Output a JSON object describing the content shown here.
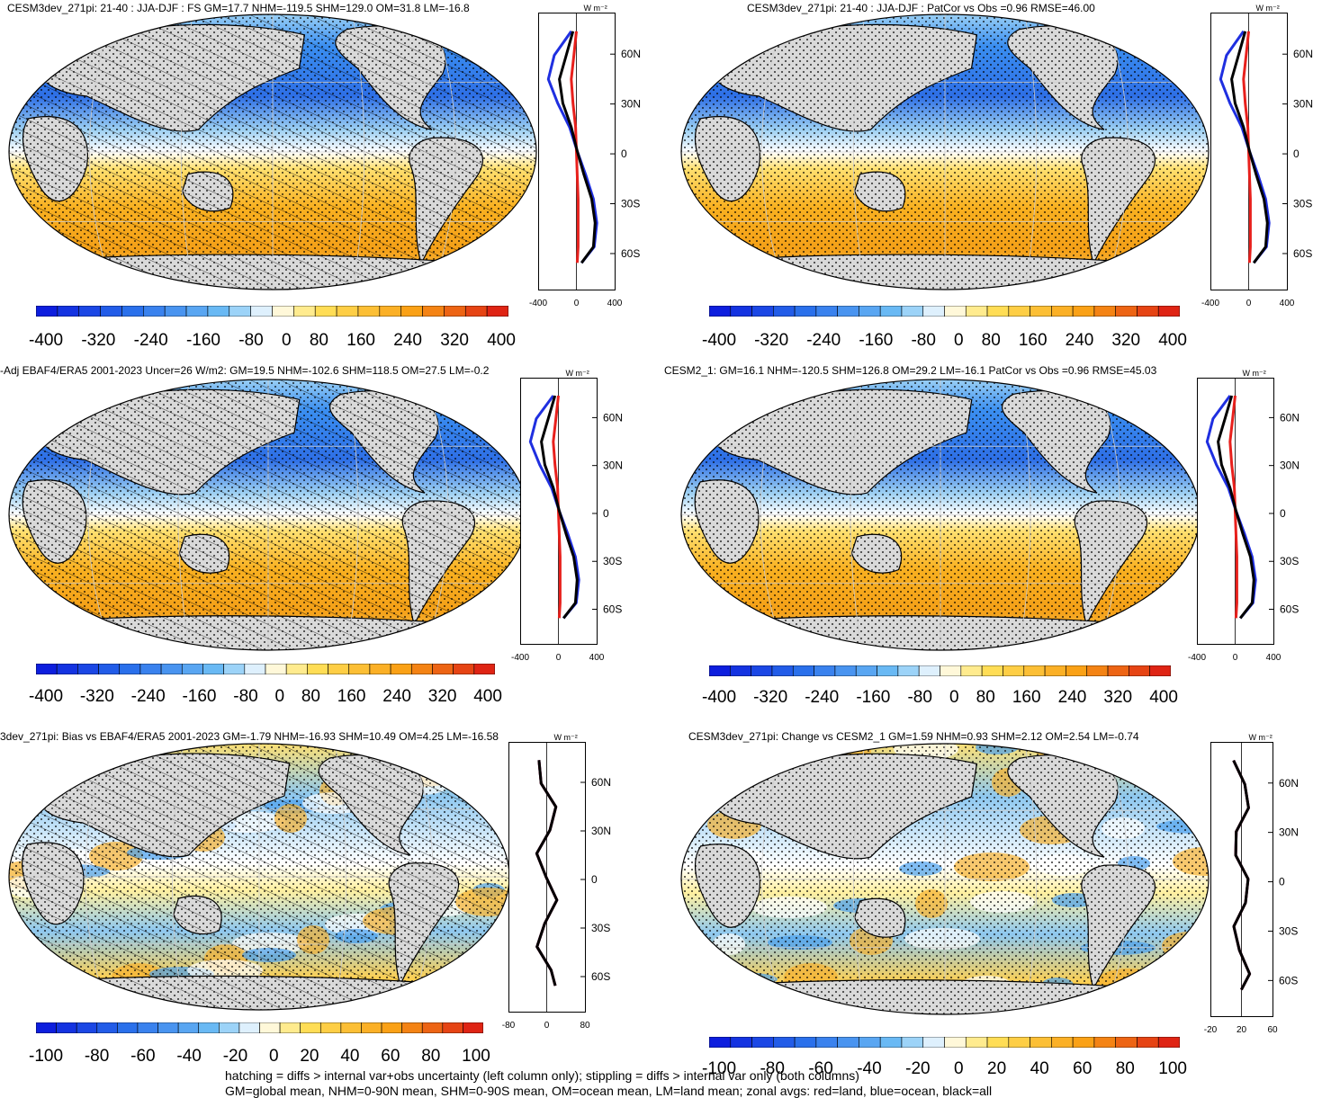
{
  "panels": [
    {
      "title": "CESM3dev_271pi: 21-40 : JJA-DJF : FS GM=17.7 NHM=-119.5 SHM=129.0 OM=31.8 LM=-16.8",
      "hatch": true,
      "kind": "full"
    },
    {
      "title": "CESM3dev_271pi: 21-40 : JJA-DJF : PatCor vs Obs =0.96 RMSE=46.00",
      "hatch": false,
      "kind": "full"
    },
    {
      "title": "-Adj EBAF4/ERA5 2001-2023 Uncer=26 W/m2: GM=19.5 NHM=-102.6 SHM=118.5 OM=27.5 LM=-0.2",
      "hatch": true,
      "kind": "full"
    },
    {
      "title": "CESM2_1: GM=16.1 NHM=-120.5 SHM=126.8 OM=29.2 LM=-16.1 PatCor vs Obs =0.96 RMSE=45.03",
      "hatch": false,
      "kind": "full"
    },
    {
      "title": "3dev_271pi: Bias vs EBAF4/ERA5 2001-2023 GM=-1.79 NHM=-16.93 SHM=10.49 OM=4.25 LM=-16.58",
      "hatch": true,
      "kind": "diff"
    },
    {
      "title": "CESM3dev_271pi: Change vs CESM2_1 GM=1.59 NHM=0.93 SHM=2.12 OM=2.54 LM=-0.74",
      "hatch": false,
      "kind": "diff"
    }
  ],
  "colorbar_full": {
    "ticks": [
      "-400",
      "-320",
      "-240",
      "-160",
      "-80",
      "0",
      "80",
      "160",
      "240",
      "320",
      "400"
    ]
  },
  "colorbar_diff": {
    "ticks": [
      "-100",
      "-80",
      "-60",
      "-40",
      "-20",
      "0",
      "20",
      "40",
      "60",
      "80",
      "100"
    ]
  },
  "zonal_lat_labels": [
    "60N",
    "30N",
    "0",
    "30S",
    "60S"
  ],
  "zonal_unit_label": "W m⁻²",
  "zonal_xticks_full": [
    "-400",
    "0",
    "400"
  ],
  "zonal_xticks_diff": [
    "-20",
    "20",
    "60"
  ],
  "zonal_xticks_bias": [
    "-80",
    "0",
    "80"
  ],
  "colors": {
    "land": "#d9d9d9",
    "red": "#e8201c",
    "blue": "#1f2fe0",
    "black": "#000000"
  },
  "footnote": {
    "line1": "hatching = diffs > internal var+obs uncertainty (left column only); stippling = diffs > internal var only (both columns)",
    "line2": "GM=global mean, NHM=0-90N mean, SHM=0-90S mean, OM=ocean mean, LM=land mean; zonal avgs: red=land, blue=ocean, black=all"
  },
  "chart_data": {
    "type": "heatmap",
    "title": "",
    "colorbar_full": [
      -400,
      -320,
      -240,
      -160,
      -80,
      0,
      80,
      160,
      240,
      320,
      400
    ],
    "colorbar_diff": [
      -100,
      -80,
      -60,
      -40,
      -20,
      0,
      20,
      40,
      60,
      80,
      100
    ],
    "zonal_profile_full": {
      "lat": [
        75,
        60,
        45,
        30,
        15,
        0,
        -15,
        -30,
        -45,
        -60,
        -70
      ],
      "all": [
        -40,
        -120,
        -200,
        -160,
        -60,
        10,
        90,
        180,
        220,
        200,
        60
      ],
      "ocean": [
        -60,
        -260,
        -330,
        -220,
        -80,
        10,
        110,
        200,
        240,
        210,
        60
      ],
      "land": [
        0,
        -30,
        -60,
        -40,
        -10,
        0,
        10,
        20,
        20,
        20,
        10
      ]
    }
  }
}
